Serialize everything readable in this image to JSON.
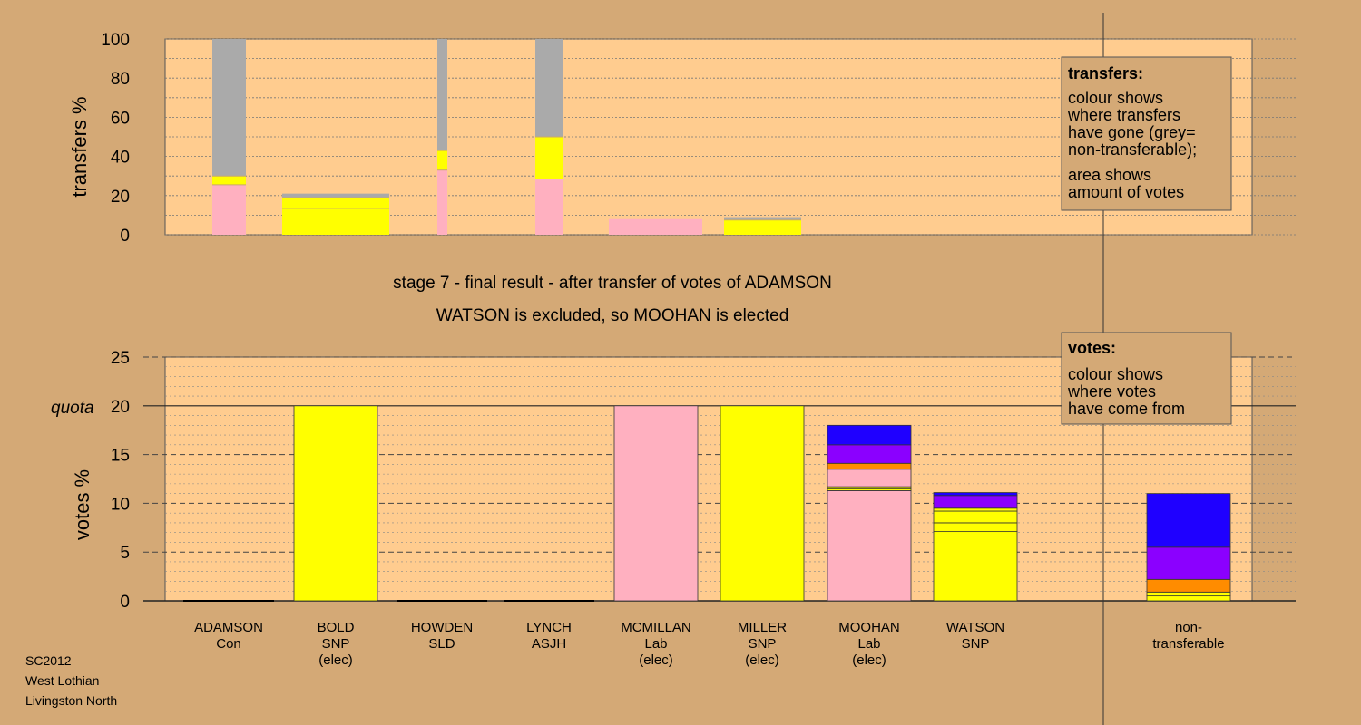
{
  "colors": {
    "background": "#d4a976",
    "plot": "#ffcc8f",
    "Con": "#1f00ff",
    "SNP": "#ffff00",
    "SLD": "#ff8c00",
    "ASJH": "#8b00ff",
    "Lab": "#ffb0c0",
    "nontransferable": "#aaaaaa"
  },
  "chart_data": [
    {
      "type": "bar",
      "title": "",
      "ylabel": "transfers %",
      "ylim": [
        0,
        100
      ],
      "yticks": [
        0,
        20,
        40,
        60,
        80,
        100
      ],
      "grid": true,
      "legend": {
        "title": "transfers:",
        "lines_a": [
          "colour shows",
          "where transfers",
          "have gone (grey=",
          "non-transferable);"
        ],
        "lines_b": [
          "area shows",
          "amount of votes"
        ]
      },
      "bars": [
        {
          "candidate": "ADAMSON",
          "segments": [
            {
              "party": "Lab",
              "value": 25.5
            },
            {
              "party": "SNP",
              "value": 4.5
            },
            {
              "party": "nontransferable",
              "value": 70
            }
          ]
        },
        {
          "candidate": "BOLD",
          "segments": [
            {
              "party": "SNP",
              "value": 13.5
            },
            {
              "party": "SNP",
              "value": 5.5
            },
            {
              "party": "nontransferable",
              "value": 2
            }
          ]
        },
        {
          "candidate": "HOWDEN",
          "segments": [
            {
              "party": "Lab",
              "value": 33
            },
            {
              "party": "SNP",
              "value": 10
            },
            {
              "party": "nontransferable",
              "value": 57
            }
          ]
        },
        {
          "candidate": "LYNCH",
          "segments": [
            {
              "party": "Lab",
              "value": 28.5
            },
            {
              "party": "SNP",
              "value": 21.5
            },
            {
              "party": "nontransferable",
              "value": 50
            }
          ]
        },
        {
          "candidate": "MCMILLAN",
          "segments": [
            {
              "party": "Lab",
              "value": 8
            }
          ]
        },
        {
          "candidate": "MILLER",
          "segments": [
            {
              "party": "SNP",
              "value": 7.5
            },
            {
              "party": "nontransferable",
              "value": 1.5
            }
          ]
        }
      ]
    },
    {
      "type": "bar",
      "title": "",
      "ylabel": "votes %",
      "ylim": [
        0,
        25
      ],
      "yticks": [
        0,
        5,
        10,
        15,
        20,
        25
      ],
      "quota": 20,
      "quota_label": "quota",
      "grid": true,
      "legend": {
        "title": "votes:",
        "lines_a": [
          "colour shows",
          "where votes",
          "have come from"
        ]
      },
      "categories": [
        [
          "ADAMSON",
          "Con"
        ],
        [
          "BOLD",
          "SNP",
          "(elec)"
        ],
        [
          "HOWDEN",
          "SLD"
        ],
        [
          "LYNCH",
          "ASJH"
        ],
        [
          "MCMILLAN",
          "Lab",
          "(elec)"
        ],
        [
          "MILLER",
          "SNP",
          "(elec)"
        ],
        [
          "MOOHAN",
          "Lab",
          "(elec)"
        ],
        [
          "WATSON",
          "SNP"
        ],
        [
          "non-",
          "transferable"
        ]
      ],
      "series": [
        {
          "candidate": "ADAMSON",
          "segments": [
            {
              "party": "Con",
              "value": 0
            }
          ]
        },
        {
          "candidate": "BOLD",
          "segments": [
            {
              "party": "SNP",
              "value": 20
            }
          ]
        },
        {
          "candidate": "HOWDEN",
          "segments": [
            {
              "party": "SLD",
              "value": 0
            }
          ]
        },
        {
          "candidate": "LYNCH",
          "segments": [
            {
              "party": "ASJH",
              "value": 0
            }
          ]
        },
        {
          "candidate": "MCMILLAN",
          "segments": [
            {
              "party": "Lab",
              "value": 20
            }
          ]
        },
        {
          "candidate": "MILLER",
          "segments": [
            {
              "party": "SNP",
              "value": 16.5
            },
            {
              "party": "SNP",
              "value": 3.5
            }
          ]
        },
        {
          "candidate": "MOOHAN",
          "segments": [
            {
              "party": "Lab",
              "value": 11.3
            },
            {
              "party": "SNP",
              "value": 0.2
            },
            {
              "party": "SNP",
              "value": 0.2
            },
            {
              "party": "Lab",
              "value": 1.8
            },
            {
              "party": "SLD",
              "value": 0.6
            },
            {
              "party": "ASJH",
              "value": 1.9
            },
            {
              "party": "Con",
              "value": 2.0
            }
          ]
        },
        {
          "candidate": "WATSON",
          "segments": [
            {
              "party": "SNP",
              "value": 7.1
            },
            {
              "party": "SNP",
              "value": 0.9
            },
            {
              "party": "SNP",
              "value": 1.2
            },
            {
              "party": "SNP",
              "value": 0.3
            },
            {
              "party": "ASJH",
              "value": 1.3
            },
            {
              "party": "Con",
              "value": 0.3
            }
          ]
        },
        {
          "candidate": "non-transferable",
          "segments": [
            {
              "party": "SNP",
              "value": 0.5
            },
            {
              "party": "SNP",
              "value": 0.2
            },
            {
              "party": "SNP",
              "value": 0.2
            },
            {
              "party": "SLD",
              "value": 1.3
            },
            {
              "party": "ASJH",
              "value": 3.3
            },
            {
              "party": "Con",
              "value": 5.5
            }
          ]
        }
      ]
    }
  ],
  "stage_text": {
    "line1": "stage 7 - final result - after transfer of votes of ADAMSON",
    "line2": "WATSON is excluded, so MOOHAN is elected"
  },
  "footer": {
    "election": "SC2012",
    "council": "West Lothian",
    "ward": "Livingston North"
  }
}
